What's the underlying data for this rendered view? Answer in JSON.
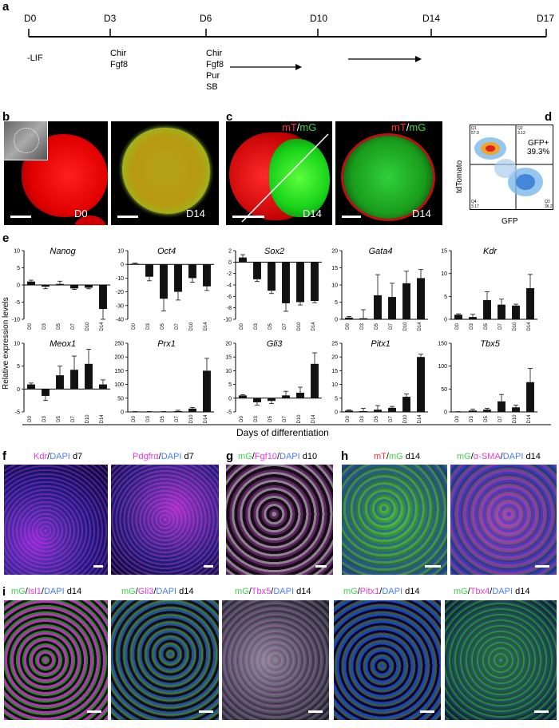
{
  "panels": {
    "a": "a",
    "b": "b",
    "c": "c",
    "d": "d",
    "e": "e",
    "f": "f",
    "g": "g",
    "h": "h",
    "i": "i"
  },
  "timeline": {
    "days": [
      "D0",
      "D3",
      "D6",
      "D10",
      "D14",
      "D17"
    ],
    "treatments": {
      "d0": [
        "-LIF"
      ],
      "d3": [
        "Chir",
        "Fgf8"
      ],
      "d6": [
        "Chir",
        "Fgf8",
        "Pur",
        "SB"
      ]
    }
  },
  "panel_b": {
    "left_label": "D0",
    "right_label": "D14"
  },
  "panel_c": {
    "left_label": "D14",
    "right_label": "D14",
    "legend_mt": "mT",
    "legend_sep": "/",
    "legend_mg": "mG"
  },
  "panel_d": {
    "ylabel": "tdTomato",
    "xlabel": "GFP",
    "gate_label": "GFP+",
    "gate_pct": "39.3%",
    "q1": "Q1",
    "q1v": "57.0",
    "q2": "Q2",
    "q2v": "3.12",
    "q3": "Q3",
    "q3v": "36.2",
    "q4": "Q4",
    "q4v": "3.17"
  },
  "panel_e": {
    "ylabel": "Relative expression levels",
    "xlabel": "Days of differentiation"
  },
  "chart_data": {
    "type": "bar",
    "categories": [
      "D0",
      "D3",
      "D5",
      "D7",
      "D10",
      "D14"
    ],
    "charts": [
      {
        "gene": "Nanog",
        "yticks": [
          10,
          5,
          0,
          -5,
          -10
        ],
        "ylim": [
          -10,
          10
        ],
        "values": [
          1,
          -0.5,
          0.3,
          -1,
          -0.8,
          -7
        ],
        "errors": [
          0.4,
          0.6,
          0.8,
          0.3,
          0.3,
          3
        ]
      },
      {
        "gene": "Oct4",
        "yticks": [
          10,
          0,
          -10,
          -20,
          -30,
          -40
        ],
        "ylim": [
          -40,
          10
        ],
        "values": [
          0.5,
          -9,
          -25,
          -20,
          -10,
          -16
        ],
        "errors": [
          0.5,
          3,
          9,
          6,
          3,
          3
        ]
      },
      {
        "gene": "Sox2",
        "yticks": [
          2,
          0,
          -2,
          -4,
          -6,
          -8,
          -10
        ],
        "ylim": [
          -10,
          2
        ],
        "values": [
          0.8,
          -3,
          -5,
          -7.2,
          -7,
          -6.8
        ],
        "errors": [
          0.5,
          0.4,
          0.5,
          1.4,
          0.5,
          0.3
        ]
      },
      {
        "gene": "Gata4",
        "yticks": [
          20,
          15,
          10,
          5,
          0
        ],
        "ylim": [
          0,
          20
        ],
        "values": [
          0.5,
          0.3,
          7,
          6.5,
          10.5,
          12
        ],
        "errors": [
          0.3,
          2.5,
          6,
          4,
          3.5,
          2.5
        ]
      },
      {
        "gene": "Kdr",
        "yticks": [
          15,
          10,
          5,
          0
        ],
        "ylim": [
          0,
          15
        ],
        "values": [
          1,
          0.5,
          4.2,
          3.2,
          3,
          6.8
        ],
        "errors": [
          0.2,
          0.6,
          1.8,
          1.2,
          0.3,
          3
        ]
      },
      {
        "gene": "Meox1",
        "yticks": [
          10,
          5,
          0,
          -5
        ],
        "ylim": [
          -5,
          10
        ],
        "values": [
          1,
          -1.5,
          3,
          4.2,
          5.5,
          1
        ],
        "errors": [
          0.3,
          1,
          2,
          3,
          3.2,
          1
        ]
      },
      {
        "gene": "Prx1",
        "yticks": [
          250,
          200,
          150,
          100,
          50,
          0
        ],
        "ylim": [
          0,
          250
        ],
        "values": [
          1,
          1,
          1,
          3,
          12,
          150
        ],
        "errors": [
          0.5,
          0.5,
          0.5,
          3,
          4,
          45
        ]
      },
      {
        "gene": "Gli3",
        "yticks": [
          20,
          15,
          10,
          5,
          0,
          -5
        ],
        "ylim": [
          -5,
          20
        ],
        "values": [
          1,
          -1.5,
          -1,
          1,
          2,
          12.5
        ],
        "errors": [
          0.3,
          1,
          1,
          1.5,
          2,
          4
        ]
      },
      {
        "gene": "Pitx1",
        "yticks": [
          25,
          20,
          15,
          10,
          5,
          0
        ],
        "ylim": [
          0,
          25
        ],
        "values": [
          0.5,
          0.3,
          0.8,
          1.5,
          5.5,
          20
        ],
        "errors": [
          0.2,
          1,
          1.5,
          0.5,
          1,
          1
        ]
      },
      {
        "gene": "Tbx5",
        "yticks": [
          150,
          100,
          50,
          0
        ],
        "ylim": [
          0,
          150
        ],
        "values": [
          0.5,
          3,
          5,
          23,
          10,
          65
        ],
        "errors": [
          0.3,
          3,
          3,
          15,
          5,
          30
        ]
      }
    ]
  },
  "panel_f": {
    "left": {
      "m": "Kdr",
      "b": "DAPI",
      "s": "d7"
    },
    "right": {
      "m": "Pdgfrα",
      "b": "DAPI",
      "s": "d7"
    }
  },
  "panel_g": {
    "g": "mG",
    "m": "Fgf10",
    "b": "DAPI",
    "s": "d10"
  },
  "panel_h": {
    "left": {
      "r": "mT",
      "g": "mG",
      "s": "d14"
    },
    "right": {
      "g": "mG",
      "m": "α-SMA",
      "b": "DAPI",
      "s": "d14"
    }
  },
  "panel_i": [
    {
      "g": "mG",
      "m": "Isl1",
      "b": "DAPI",
      "s": "d14"
    },
    {
      "g": "mG",
      "m": "Gli3",
      "b": "DAPI",
      "s": "d14"
    },
    {
      "g": "mG",
      "m": "Tbx5",
      "b": "DAPI",
      "s": "d14"
    },
    {
      "g": "mG",
      "m": "Pitx1",
      "b": "DAPI",
      "s": "d14"
    },
    {
      "g": "mG",
      "m": "Tbx4",
      "b": "DAPI",
      "s": "d14"
    }
  ]
}
